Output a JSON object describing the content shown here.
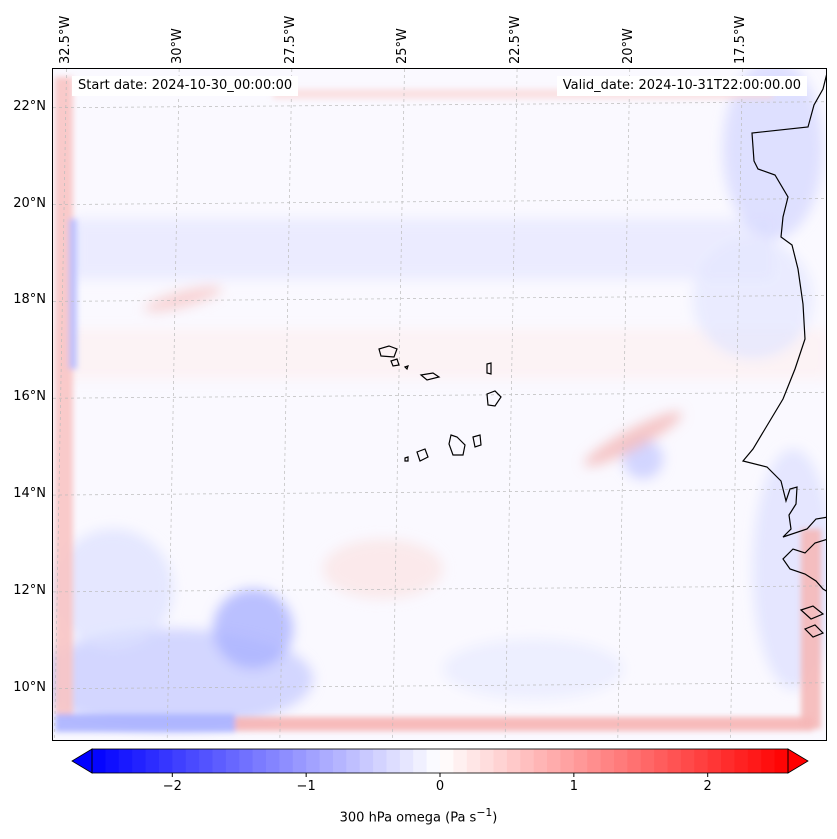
{
  "header": {
    "start_date": "Start date: 2024-10-30_00:00:00",
    "valid_date": "Valid_date: 2024-10-31T22:00:00.00"
  },
  "axes": {
    "lon_labels": [
      "32.5°W",
      "30°W",
      "27.5°W",
      "25°W",
      "22.5°W",
      "20°W",
      "17.5°W"
    ],
    "lat_labels": [
      "22°N",
      "20°N",
      "18°N",
      "16°N",
      "14°N",
      "12°N",
      "10°N"
    ]
  },
  "map": {
    "extent": {
      "lon_min": -32.8,
      "lon_max": -15.6,
      "lat_min": 8.9,
      "lat_max": 22.8
    },
    "gridlines": {
      "lons": [
        -32.5,
        -30,
        -27.5,
        -25,
        -22.5,
        -20,
        -17.5
      ],
      "lats": [
        22,
        20,
        18,
        16,
        14,
        12,
        10
      ]
    },
    "colors": {
      "ocean_bg": "#faf9ff",
      "coastline": "#000000",
      "grid": "#cccccc"
    }
  },
  "colorbar": {
    "label": "300 hPa omega (Pa s",
    "label_sup": "−1",
    "label_close": ")",
    "ticks": [
      "−2",
      "−1",
      "0",
      "1",
      "2"
    ],
    "tick_values": [
      -2,
      -1,
      0,
      1,
      2
    ],
    "vmin": -2.6,
    "vmax": 2.6,
    "colormap": "bwr",
    "extend": "both"
  }
}
